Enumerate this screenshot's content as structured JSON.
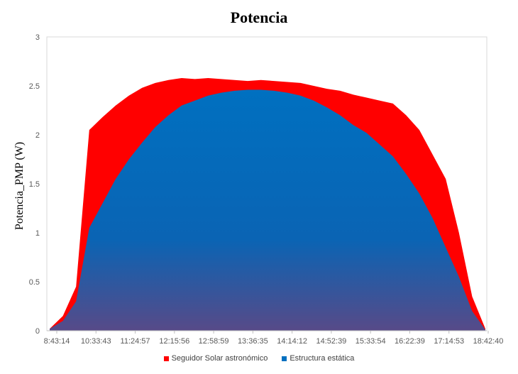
{
  "chart_data": {
    "type": "area",
    "title": "Potencia",
    "ylabel": "Potencia_PMP (W)",
    "xlabel": "",
    "ylim": [
      0,
      3
    ],
    "yticks": [
      "0",
      "0.5",
      "1",
      "1.5",
      "2",
      "2.5",
      "3"
    ],
    "x_tick_labels": [
      "8:43:14",
      "10:33:43",
      "11:24:57",
      "12:15:56",
      "12:58:59",
      "13:36:35",
      "14:14:12",
      "14:52:39",
      "15:33:54",
      "16:22:39",
      "17:14:53",
      "18:42:40"
    ],
    "grid": false,
    "legend_position": "bottom",
    "series": [
      {
        "name": "Seguidor Solar astronómico",
        "color": "#ff0000",
        "values": [
          0.02,
          0.15,
          0.45,
          2.05,
          2.18,
          2.3,
          2.4,
          2.48,
          2.53,
          2.56,
          2.58,
          2.57,
          2.58,
          2.57,
          2.56,
          2.55,
          2.56,
          2.55,
          2.54,
          2.53,
          2.5,
          2.47,
          2.45,
          2.41,
          2.38,
          2.35,
          2.32,
          2.2,
          2.05,
          1.8,
          1.55,
          1.0,
          0.35,
          0.02
        ]
      },
      {
        "name": "Estructura estática",
        "color": "#0070c0",
        "values": [
          0.02,
          0.1,
          0.3,
          1.05,
          1.3,
          1.55,
          1.75,
          1.92,
          2.08,
          2.2,
          2.3,
          2.35,
          2.4,
          2.43,
          2.45,
          2.46,
          2.46,
          2.45,
          2.43,
          2.4,
          2.35,
          2.28,
          2.2,
          2.1,
          2.02,
          1.9,
          1.78,
          1.6,
          1.4,
          1.15,
          0.85,
          0.55,
          0.2,
          0.01
        ]
      }
    ]
  }
}
